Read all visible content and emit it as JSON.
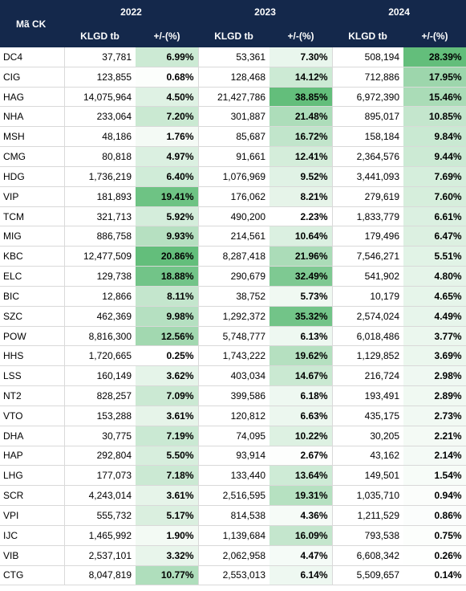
{
  "header": {
    "code_label": "Mã CK",
    "years": [
      "2022",
      "2023",
      "2024"
    ],
    "vol_label": "KLGD tb",
    "pct_label": "+/-(%)"
  },
  "colors": {
    "header_bg": "#14284b",
    "header_text": "#ffffff",
    "heat_high": "#63be7b",
    "heat_low": "#ffffff"
  },
  "rows": [
    {
      "code": "DC4",
      "v2022": "37,781",
      "p2022": "6.99%",
      "v2023": "53,361",
      "p2023": "7.30%",
      "v2024": "508,194",
      "p2024": "28.39%"
    },
    {
      "code": "CIG",
      "v2022": "123,855",
      "p2022": "0.68%",
      "v2023": "128,468",
      "p2023": "14.12%",
      "v2024": "712,886",
      "p2024": "17.95%"
    },
    {
      "code": "HAG",
      "v2022": "14,075,964",
      "p2022": "4.50%",
      "v2023": "21,427,786",
      "p2023": "38.85%",
      "v2024": "6,972,390",
      "p2024": "15.46%"
    },
    {
      "code": "NHA",
      "v2022": "233,064",
      "p2022": "7.20%",
      "v2023": "301,887",
      "p2023": "21.48%",
      "v2024": "895,017",
      "p2024": "10.85%"
    },
    {
      "code": "MSH",
      "v2022": "48,186",
      "p2022": "1.76%",
      "v2023": "85,687",
      "p2023": "16.72%",
      "v2024": "158,184",
      "p2024": "9.84%"
    },
    {
      "code": "CMG",
      "v2022": "80,818",
      "p2022": "4.97%",
      "v2023": "91,661",
      "p2023": "12.41%",
      "v2024": "2,364,576",
      "p2024": "9.44%"
    },
    {
      "code": "HDG",
      "v2022": "1,736,219",
      "p2022": "6.40%",
      "v2023": "1,076,969",
      "p2023": "9.52%",
      "v2024": "3,441,093",
      "p2024": "7.69%"
    },
    {
      "code": "VIP",
      "v2022": "181,893",
      "p2022": "19.41%",
      "v2023": "176,062",
      "p2023": "8.21%",
      "v2024": "279,619",
      "p2024": "7.60%"
    },
    {
      "code": "TCM",
      "v2022": "321,713",
      "p2022": "5.92%",
      "v2023": "490,200",
      "p2023": "2.23%",
      "v2024": "1,833,779",
      "p2024": "6.61%"
    },
    {
      "code": "MIG",
      "v2022": "886,758",
      "p2022": "9.93%",
      "v2023": "214,561",
      "p2023": "10.64%",
      "v2024": "179,496",
      "p2024": "6.47%"
    },
    {
      "code": "KBC",
      "v2022": "12,477,509",
      "p2022": "20.86%",
      "v2023": "8,287,418",
      "p2023": "21.96%",
      "v2024": "7,546,271",
      "p2024": "5.51%"
    },
    {
      "code": "ELC",
      "v2022": "129,738",
      "p2022": "18.88%",
      "v2023": "290,679",
      "p2023": "32.49%",
      "v2024": "541,902",
      "p2024": "4.80%"
    },
    {
      "code": "BIC",
      "v2022": "12,866",
      "p2022": "8.11%",
      "v2023": "38,752",
      "p2023": "5.73%",
      "v2024": "10,179",
      "p2024": "4.65%"
    },
    {
      "code": "SZC",
      "v2022": "462,369",
      "p2022": "9.98%",
      "v2023": "1,292,372",
      "p2023": "35.32%",
      "v2024": "2,574,024",
      "p2024": "4.49%"
    },
    {
      "code": "POW",
      "v2022": "8,816,300",
      "p2022": "12.56%",
      "v2023": "5,748,777",
      "p2023": "6.13%",
      "v2024": "6,018,486",
      "p2024": "3.77%"
    },
    {
      "code": "HHS",
      "v2022": "1,720,665",
      "p2022": "0.25%",
      "v2023": "1,743,222",
      "p2023": "19.62%",
      "v2024": "1,129,852",
      "p2024": "3.69%"
    },
    {
      "code": "LSS",
      "v2022": "160,149",
      "p2022": "3.62%",
      "v2023": "403,034",
      "p2023": "14.67%",
      "v2024": "216,724",
      "p2024": "2.98%"
    },
    {
      "code": "NT2",
      "v2022": "828,257",
      "p2022": "7.09%",
      "v2023": "399,586",
      "p2023": "6.18%",
      "v2024": "193,491",
      "p2024": "2.89%"
    },
    {
      "code": "VTO",
      "v2022": "153,288",
      "p2022": "3.61%",
      "v2023": "120,812",
      "p2023": "6.63%",
      "v2024": "435,175",
      "p2024": "2.73%"
    },
    {
      "code": "DHA",
      "v2022": "30,775",
      "p2022": "7.19%",
      "v2023": "74,095",
      "p2023": "10.22%",
      "v2024": "30,205",
      "p2024": "2.21%"
    },
    {
      "code": "HAP",
      "v2022": "292,804",
      "p2022": "5.50%",
      "v2023": "93,914",
      "p2023": "2.67%",
      "v2024": "43,162",
      "p2024": "2.14%"
    },
    {
      "code": "LHG",
      "v2022": "177,073",
      "p2022": "7.18%",
      "v2023": "133,440",
      "p2023": "13.64%",
      "v2024": "149,501",
      "p2024": "1.54%"
    },
    {
      "code": "SCR",
      "v2022": "4,243,014",
      "p2022": "3.61%",
      "v2023": "2,516,595",
      "p2023": "19.31%",
      "v2024": "1,035,710",
      "p2024": "0.94%"
    },
    {
      "code": "VPI",
      "v2022": "555,732",
      "p2022": "5.17%",
      "v2023": "814,538",
      "p2023": "4.36%",
      "v2024": "1,211,529",
      "p2024": "0.86%"
    },
    {
      "code": "IJC",
      "v2022": "1,465,992",
      "p2022": "1.90%",
      "v2023": "1,139,684",
      "p2023": "16.09%",
      "v2024": "793,538",
      "p2024": "0.75%"
    },
    {
      "code": "VIB",
      "v2022": "2,537,101",
      "p2022": "3.32%",
      "v2023": "2,062,958",
      "p2023": "4.47%",
      "v2024": "6,608,342",
      "p2024": "0.26%"
    },
    {
      "code": "CTG",
      "v2022": "8,047,819",
      "p2022": "10.77%",
      "v2023": "2,553,013",
      "p2023": "6.14%",
      "v2024": "5,509,657",
      "p2024": "0.14%"
    }
  ]
}
